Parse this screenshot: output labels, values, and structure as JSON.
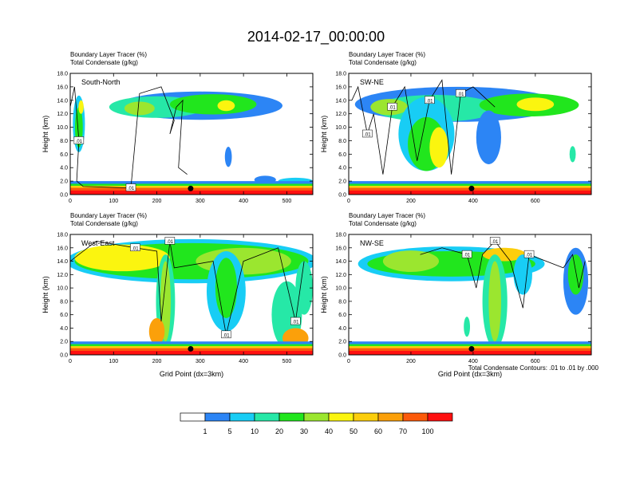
{
  "main_title": "2014-02-17_00:00:00",
  "footnote": "Total Condensate Contours: .01 to .01 by .000",
  "colorbar": {
    "colors": [
      "#ffffff",
      "#2c85f5",
      "#18cdf5",
      "#26e8a7",
      "#21e61d",
      "#9be62f",
      "#fbf50f",
      "#fcce0c",
      "#fba00a",
      "#fc5a0a",
      "#ff1010"
    ],
    "labels": [
      "1",
      "5",
      "10",
      "20",
      "30",
      "40",
      "50",
      "60",
      "70",
      "100"
    ]
  },
  "chart_data": [
    {
      "type": "heatmap",
      "panel_label": "South-North",
      "left_string_1": "Boundary Layer Tracer   (%)",
      "left_string_2": "Total Condensate   (g/kg)",
      "ylabel": "Height (km)",
      "xlabel": "",
      "xlim": [
        0,
        560
      ],
      "ylim": [
        0,
        18
      ],
      "xticks": [
        "0",
        "100",
        "200",
        "300",
        "400",
        "500"
      ],
      "yticks": [
        "0.0",
        "2.0",
        "4.0",
        "6.0",
        "8.0",
        "10.0",
        "12.0",
        "14.0",
        "16.0",
        "18.0"
      ],
      "contour_labels": [
        ".01",
        ".01"
      ],
      "marker_x": 278
    },
    {
      "type": "heatmap",
      "panel_label": "SW-NE",
      "left_string_1": "Boundary Layer Tracer   (%)",
      "left_string_2": "Total Condensate   (g/kg)",
      "ylabel": "Height (km)",
      "xlabel": "",
      "xlim": [
        0,
        780
      ],
      "ylim": [
        0,
        18
      ],
      "xticks": [
        "0",
        "200",
        "400",
        "600"
      ],
      "yticks": [
        "0.0",
        "2.0",
        "4.0",
        "6.0",
        "8.0",
        "10.0",
        "12.0",
        "14.0",
        "16.0",
        "18.0"
      ],
      "contour_labels": [
        ".01",
        ".01",
        ".01",
        ".01"
      ],
      "marker_x": 395
    },
    {
      "type": "heatmap",
      "panel_label": "West-East",
      "left_string_1": "Boundary Layer Tracer   (%)",
      "left_string_2": "Total Condensate   (g/kg)",
      "ylabel": "Height (km)",
      "xlabel": "Grid Point (dx=3km)",
      "xlim": [
        0,
        560
      ],
      "ylim": [
        0,
        18
      ],
      "xticks": [
        "0",
        "100",
        "200",
        "300",
        "400",
        "500"
      ],
      "yticks": [
        "0.0",
        "2.0",
        "4.0",
        "6.0",
        "8.0",
        "10.0",
        "12.0",
        "14.0",
        "16.0",
        "18.0"
      ],
      "contour_labels": [
        ".01",
        ".01",
        ".01",
        ".01"
      ],
      "marker_x": 278
    },
    {
      "type": "heatmap",
      "panel_label": "NW-SE",
      "left_string_1": "Boundary Layer Tracer   (%)",
      "left_string_2": "Total Condensate   (g/kg)",
      "ylabel": "Height (km)",
      "xlabel": "Grid Point (dx=3km)",
      "xlim": [
        0,
        780
      ],
      "ylim": [
        0,
        18
      ],
      "xticks": [
        "0",
        "200",
        "400",
        "600"
      ],
      "yticks": [
        "0.0",
        "2.0",
        "4.0",
        "6.0",
        "8.0",
        "10.0",
        "12.0",
        "14.0",
        "16.0",
        "18.0"
      ],
      "contour_labels": [
        ".01",
        ".01",
        ".01"
      ],
      "marker_x": 395
    }
  ]
}
